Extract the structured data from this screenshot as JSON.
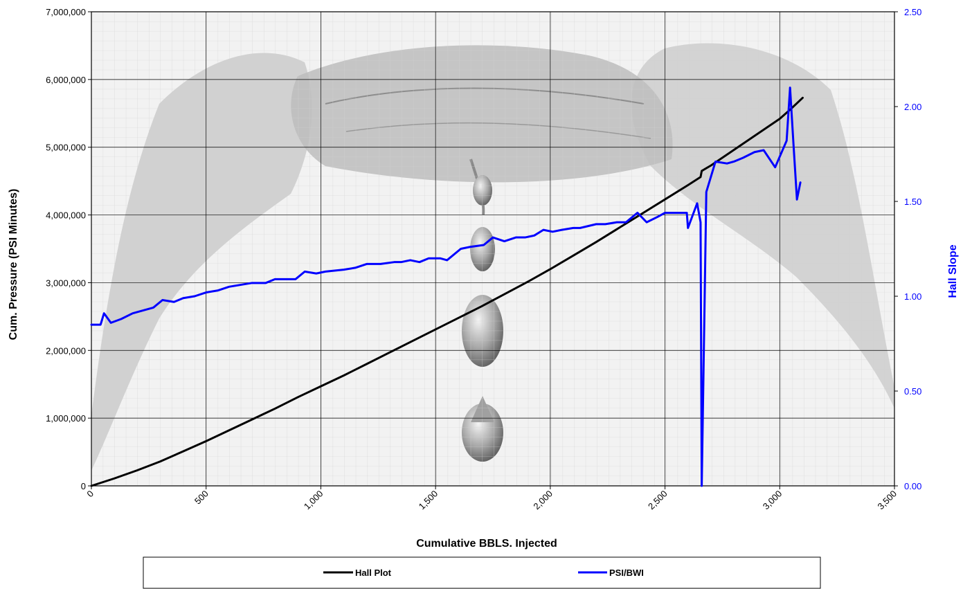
{
  "chart_data": {
    "type": "line",
    "xlabel": "Cumulative BBLS. Injected",
    "ylabel": "Cum. Pressure (PSI Minutes)",
    "y2label": "Hall Slope",
    "xlim": [
      0,
      3500
    ],
    "ylim": [
      0,
      7000000
    ],
    "y2lim": [
      0,
      2.5
    ],
    "x_ticks": [
      "0",
      "500",
      "1,000",
      "1,500",
      "2,000",
      "2,500",
      "3,000",
      "3,500"
    ],
    "y_ticks": [
      "0",
      "1,000,000",
      "2,000,000",
      "3,000,000",
      "4,000,000",
      "5,000,000",
      "6,000,000",
      "7,000,000"
    ],
    "y2_ticks": [
      "0.00",
      "0.50",
      "1.00",
      "1.50",
      "2.00",
      "2.50"
    ],
    "grid": true,
    "legend_position": "bottom",
    "background_image": "hands-holding-oil-drop-photo",
    "series": [
      {
        "name": "Hall Plot",
        "axis": "left",
        "color": "#000000",
        "points": [
          [
            0,
            0
          ],
          [
            100,
            110000
          ],
          [
            200,
            230000
          ],
          [
            300,
            360000
          ],
          [
            400,
            510000
          ],
          [
            500,
            660000
          ],
          [
            600,
            820000
          ],
          [
            700,
            980000
          ],
          [
            800,
            1140000
          ],
          [
            900,
            1310000
          ],
          [
            1000,
            1470000
          ],
          [
            1100,
            1630000
          ],
          [
            1200,
            1800000
          ],
          [
            1300,
            1970000
          ],
          [
            1400,
            2140000
          ],
          [
            1500,
            2310000
          ],
          [
            1600,
            2480000
          ],
          [
            1700,
            2650000
          ],
          [
            1800,
            2830000
          ],
          [
            1900,
            3010000
          ],
          [
            2000,
            3200000
          ],
          [
            2100,
            3400000
          ],
          [
            2200,
            3600000
          ],
          [
            2300,
            3810000
          ],
          [
            2400,
            4020000
          ],
          [
            2500,
            4230000
          ],
          [
            2600,
            4440000
          ],
          [
            2655,
            4560000
          ],
          [
            2660,
            4650000
          ],
          [
            2700,
            4730000
          ],
          [
            2800,
            4960000
          ],
          [
            2900,
            5190000
          ],
          [
            3000,
            5420000
          ],
          [
            3050,
            5570000
          ],
          [
            3100,
            5730000
          ]
        ]
      },
      {
        "name": "PSI/BWI",
        "axis": "right",
        "color": "#0000ff",
        "points": [
          [
            0,
            0.85
          ],
          [
            40,
            0.85
          ],
          [
            55,
            0.91
          ],
          [
            85,
            0.86
          ],
          [
            130,
            0.88
          ],
          [
            180,
            0.91
          ],
          [
            270,
            0.94
          ],
          [
            310,
            0.98
          ],
          [
            360,
            0.97
          ],
          [
            400,
            0.99
          ],
          [
            450,
            1.0
          ],
          [
            500,
            1.02
          ],
          [
            550,
            1.03
          ],
          [
            600,
            1.05
          ],
          [
            650,
            1.06
          ],
          [
            700,
            1.07
          ],
          [
            760,
            1.07
          ],
          [
            800,
            1.09
          ],
          [
            850,
            1.09
          ],
          [
            890,
            1.09
          ],
          [
            930,
            1.13
          ],
          [
            980,
            1.12
          ],
          [
            1020,
            1.13
          ],
          [
            1100,
            1.14
          ],
          [
            1150,
            1.15
          ],
          [
            1200,
            1.17
          ],
          [
            1260,
            1.17
          ],
          [
            1320,
            1.18
          ],
          [
            1350,
            1.18
          ],
          [
            1390,
            1.19
          ],
          [
            1430,
            1.18
          ],
          [
            1470,
            1.2
          ],
          [
            1520,
            1.2
          ],
          [
            1550,
            1.19
          ],
          [
            1610,
            1.25
          ],
          [
            1650,
            1.26
          ],
          [
            1710,
            1.27
          ],
          [
            1750,
            1.31
          ],
          [
            1800,
            1.29
          ],
          [
            1850,
            1.31
          ],
          [
            1890,
            1.31
          ],
          [
            1930,
            1.32
          ],
          [
            1970,
            1.35
          ],
          [
            2010,
            1.34
          ],
          [
            2050,
            1.35
          ],
          [
            2100,
            1.36
          ],
          [
            2130,
            1.36
          ],
          [
            2200,
            1.38
          ],
          [
            2240,
            1.38
          ],
          [
            2290,
            1.39
          ],
          [
            2330,
            1.39
          ],
          [
            2380,
            1.44
          ],
          [
            2420,
            1.39
          ],
          [
            2470,
            1.42
          ],
          [
            2500,
            1.44
          ],
          [
            2550,
            1.44
          ],
          [
            2595,
            1.44
          ],
          [
            2600,
            1.36
          ],
          [
            2640,
            1.49
          ],
          [
            2655,
            1.39
          ],
          [
            2660,
            0.0
          ],
          [
            2680,
            1.55
          ],
          [
            2720,
            1.71
          ],
          [
            2770,
            1.7
          ],
          [
            2800,
            1.71
          ],
          [
            2840,
            1.73
          ],
          [
            2890,
            1.76
          ],
          [
            2930,
            1.77
          ],
          [
            2980,
            1.68
          ],
          [
            3030,
            1.82
          ],
          [
            3045,
            2.1
          ],
          [
            3060,
            1.8
          ],
          [
            3075,
            1.51
          ],
          [
            3090,
            1.6
          ]
        ]
      }
    ]
  }
}
